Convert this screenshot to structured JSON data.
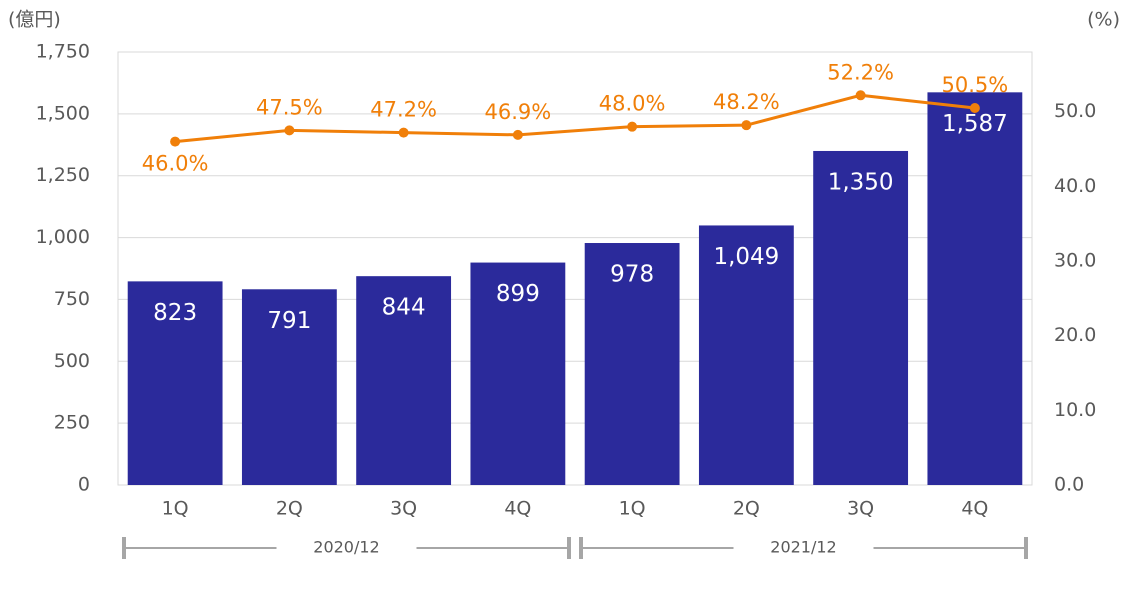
{
  "chart_data": {
    "type": "bar-line",
    "y_unit_label": "(億円)",
    "y2_unit_label": "(%)",
    "categories": [
      "1Q",
      "2Q",
      "3Q",
      "4Q",
      "1Q",
      "2Q",
      "3Q",
      "4Q"
    ],
    "groups": [
      {
        "label": "2020/12",
        "count": 4
      },
      {
        "label": "2021/12",
        "count": 4
      }
    ],
    "series": [
      {
        "type": "bar",
        "color": "#2b2a9b",
        "values": [
          823,
          791,
          844,
          899,
          978,
          1049,
          1350,
          1587
        ],
        "value_labels": [
          "823",
          "791",
          "844",
          "899",
          "978",
          "1,049",
          "1,350",
          "1,587"
        ]
      },
      {
        "type": "line",
        "axis": "y2",
        "color": "#f07f09",
        "values": [
          46.0,
          47.5,
          47.2,
          46.9,
          48.0,
          48.2,
          52.2,
          50.5
        ],
        "value_labels": [
          "46.0%",
          "47.5%",
          "47.2%",
          "46.9%",
          "48.0%",
          "48.2%",
          "52.2%",
          "50.5%"
        ]
      }
    ],
    "ylim": [
      0,
      1750
    ],
    "yticks": [
      0,
      250,
      500,
      750,
      {
        "value": 1000,
        "label": "1,000"
      },
      {
        "value": 1250,
        "label": "1,250"
      },
      {
        "value": 1500,
        "label": "1,500"
      },
      {
        "value": 1750,
        "label": "1,750"
      }
    ],
    "y2lim": [
      0,
      58
    ],
    "y2ticks": [
      {
        "value": 0,
        "label": "0.0"
      },
      {
        "value": 10,
        "label": "10.0"
      },
      {
        "value": 20,
        "label": "20.0"
      },
      {
        "value": 30,
        "label": "30.0"
      },
      {
        "value": 40,
        "label": "40.0"
      },
      {
        "value": 50,
        "label": "50.0"
      }
    ],
    "grid": true
  }
}
